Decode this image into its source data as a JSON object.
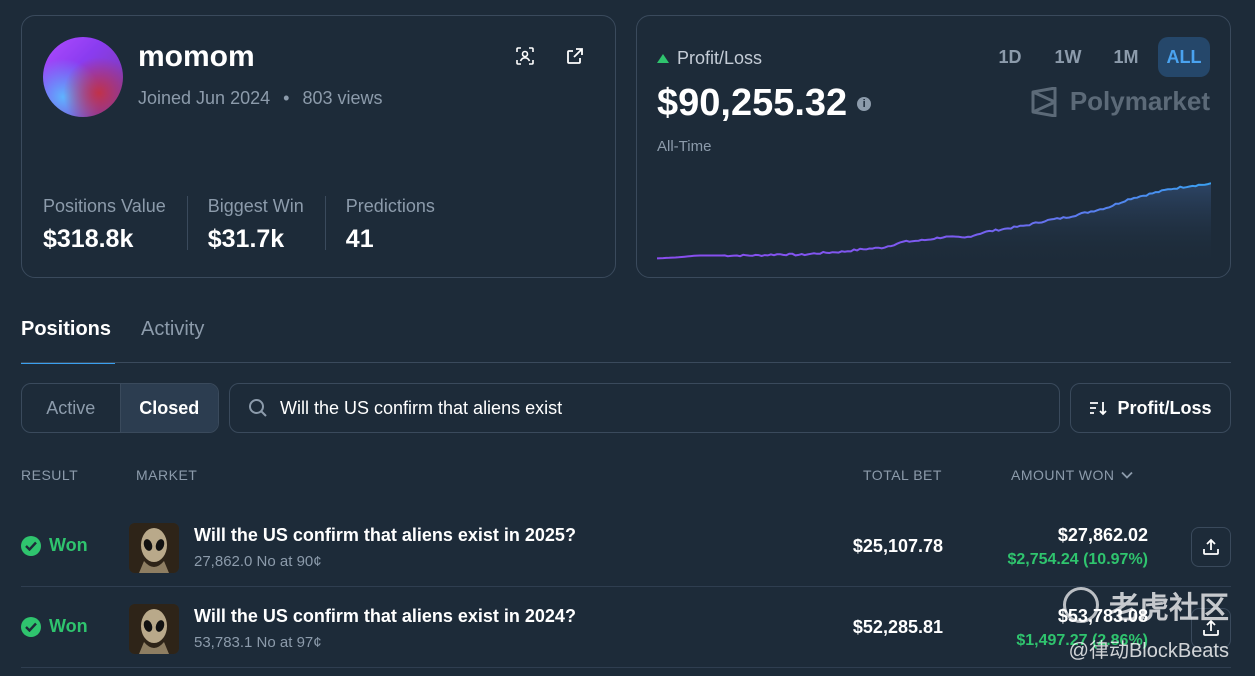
{
  "profile": {
    "username": "momom",
    "joined": "Joined Jun 2024",
    "dot": "•",
    "views": "803 views",
    "stats": [
      {
        "label": "Positions Value",
        "value": "$318.8k"
      },
      {
        "label": "Biggest Win",
        "value": "$31.7k"
      },
      {
        "label": "Predictions",
        "value": "41"
      }
    ],
    "icons": [
      "qr-scan-icon",
      "external-link-icon"
    ]
  },
  "pnl": {
    "label": "Profit/Loss",
    "value": "$90,255.32",
    "info": "i",
    "period_label": "All-Time",
    "timeframes": [
      "1D",
      "1W",
      "1M",
      "ALL"
    ],
    "active_timeframe": "ALL",
    "brand": "Polymarket",
    "colors": {
      "up": "#2fc46e",
      "line_start": "#8a4df0",
      "line_end": "#3aa0f0"
    },
    "chart_data": {
      "type": "line",
      "title": "",
      "xlabel": "",
      "ylabel": "",
      "grid": false,
      "series": [
        {
          "values": [
            0,
            1200,
            3500,
            3500,
            3500,
            3600,
            5000,
            4200,
            6500,
            8000,
            11000,
            13000,
            20000,
            22000,
            26000,
            25000,
            32000,
            36000,
            40000,
            46000,
            50000,
            56000,
            62000,
            72000,
            78000,
            84000,
            88000,
            90255.32
          ]
        }
      ],
      "ylim": [
        -2000,
        95000
      ]
    }
  },
  "tabs": [
    {
      "label": "Positions",
      "active": true
    },
    {
      "label": "Activity",
      "active": false
    }
  ],
  "filters": {
    "segments": [
      {
        "label": "Active",
        "active": false
      },
      {
        "label": "Closed",
        "active": true
      }
    ],
    "search_value": "Will the US confirm that aliens exist",
    "sort_label": "Profit/Loss"
  },
  "table": {
    "headers": {
      "result": "RESULT",
      "market": "MARKET",
      "total_bet": "TOTAL BET",
      "amount_won": "AMOUNT WON"
    },
    "rows": [
      {
        "result": "Won",
        "title": "Will the US confirm that aliens exist in 2025?",
        "sub": "27,862.0 No at 90¢",
        "total_bet": "$25,107.78",
        "amount_won": "$27,862.02",
        "gain": "$2,754.24 (10.97%)"
      },
      {
        "result": "Won",
        "title": "Will the US confirm that aliens exist in 2024?",
        "sub": "53,783.1 No at 97¢",
        "total_bet": "$52,285.81",
        "amount_won": "$53,783.08",
        "gain": "$1,497.27 (2.86%)"
      }
    ]
  },
  "watermark": {
    "line1": "老虎社区",
    "line2": "@律动BlockBeats"
  }
}
